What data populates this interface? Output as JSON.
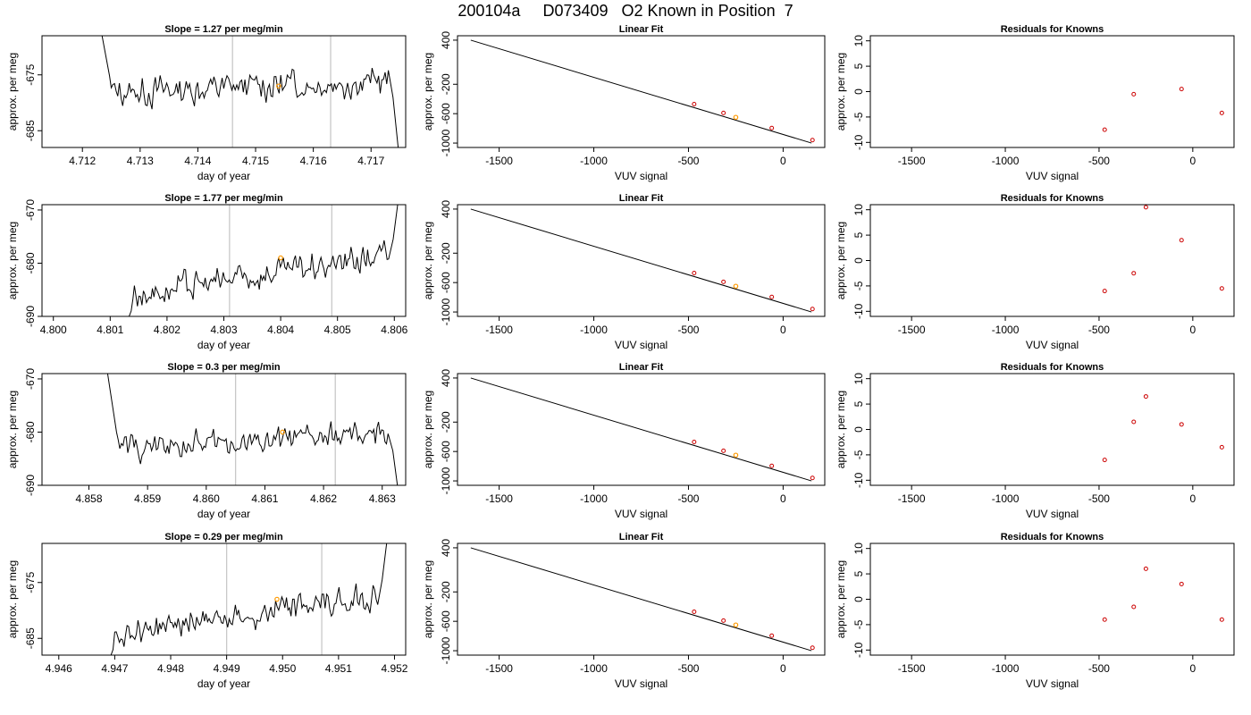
{
  "page_title": "200104a     D073409   O2 Known in Position  7",
  "chart_data": [
    {
      "type": "line",
      "title": "Slope =  1.27  per meg/min",
      "xlabel": "day of year",
      "ylabel": "approx. per meg",
      "xlim": [
        4.7113,
        4.7176
      ],
      "ylim": [
        -688,
        -668
      ],
      "xticks": [
        4.712,
        4.713,
        4.714,
        4.715,
        4.716,
        4.717
      ],
      "xtick_labels": [
        "4.712",
        "4.713",
        "4.714",
        "4.715",
        "4.716",
        "4.717"
      ],
      "yticks": [
        -685,
        -675
      ],
      "ytick_labels": [
        "-685",
        "-675"
      ],
      "vlines": [
        4.7146,
        4.7163
      ],
      "highlight": {
        "x": 4.7154,
        "y": -677
      },
      "trace": {
        "x_start": 4.7125,
        "x_end": 4.7173,
        "base_start": -678.2,
        "base_end": -676.0,
        "amp": 2.2,
        "head_above": true,
        "tail": "down"
      }
    },
    {
      "type": "scatter",
      "title": "Linear Fit",
      "xlabel": "VUV signal",
      "ylabel": "approx. per meg",
      "xlim": [
        -1720,
        220
      ],
      "ylim": [
        -1060,
        460
      ],
      "xticks": [
        -1500,
        -1000,
        -500,
        0
      ],
      "xtick_labels": [
        "-1500",
        "-1000",
        "-500",
        "0"
      ],
      "yticks": [
        -1000,
        -600,
        -200,
        400
      ],
      "ytick_labels": [
        "-1000",
        "-600",
        "-200",
        "400"
      ],
      "line": {
        "x": [
          -1650,
          150
        ],
        "y": [
          400,
          -1000
        ]
      },
      "points": {
        "x": [
          -470,
          -315,
          -60,
          155
        ],
        "y": [
          -470,
          -590,
          -795,
          -960
        ]
      },
      "highlight": {
        "x": -250,
        "y": -650
      }
    },
    {
      "type": "scatter",
      "title": "Residuals for Knowns",
      "xlabel": "VUV signal",
      "ylabel": "approx. per meg",
      "xlim": [
        -1720,
        220
      ],
      "ylim": [
        -11,
        11
      ],
      "xticks": [
        -1500,
        -1000,
        -500,
        0
      ],
      "xtick_labels": [
        "-1500",
        "-1000",
        "-500",
        "0"
      ],
      "yticks": [
        -10,
        -5,
        0,
        5,
        10
      ],
      "ytick_labels": [
        "-10",
        "-5",
        "0",
        "5",
        "10"
      ],
      "points": {
        "x": [
          -470,
          -315,
          -60,
          155
        ],
        "y": [
          -7.5,
          -0.5,
          0.5,
          -4.2
        ]
      }
    },
    {
      "type": "line",
      "title": "Slope =  1.77  per meg/min",
      "xlabel": "day of year",
      "ylabel": "approx. per meg",
      "xlim": [
        4.7998,
        4.8062
      ],
      "ylim": [
        -690,
        -669
      ],
      "xticks": [
        4.8,
        4.801,
        4.802,
        4.803,
        4.804,
        4.805,
        4.806
      ],
      "xtick_labels": [
        "4.800",
        "4.801",
        "4.802",
        "4.803",
        "4.804",
        "4.805",
        "4.806"
      ],
      "yticks": [
        -690,
        -680,
        -670
      ],
      "ytick_labels": [
        "-690",
        "-680",
        "-670"
      ],
      "vlines": [
        4.8031,
        4.8049
      ],
      "highlight": {
        "x": 4.804,
        "y": -679
      },
      "trace": {
        "x_start": 4.8014,
        "x_end": 4.8059,
        "base_start": -686.0,
        "base_end": -678.5,
        "amp": 2.2,
        "head_above": false,
        "tail": "up"
      }
    },
    {
      "type": "scatter",
      "title": "Linear Fit",
      "xlabel": "VUV signal",
      "ylabel": "approx. per meg",
      "xlim": [
        -1720,
        220
      ],
      "ylim": [
        -1060,
        460
      ],
      "xticks": [
        -1500,
        -1000,
        -500,
        0
      ],
      "xtick_labels": [
        "-1500",
        "-1000",
        "-500",
        "0"
      ],
      "yticks": [
        -1000,
        -600,
        -200,
        400
      ],
      "ytick_labels": [
        "-1000",
        "-600",
        "-200",
        "400"
      ],
      "line": {
        "x": [
          -1650,
          150
        ],
        "y": [
          400,
          -1000
        ]
      },
      "points": {
        "x": [
          -470,
          -315,
          -60,
          155
        ],
        "y": [
          -470,
          -590,
          -795,
          -960
        ]
      },
      "highlight": {
        "x": -250,
        "y": -650
      }
    },
    {
      "type": "scatter",
      "title": "Residuals for Knowns",
      "xlabel": "VUV signal",
      "ylabel": "approx. per meg",
      "xlim": [
        -1720,
        220
      ],
      "ylim": [
        -11,
        11
      ],
      "xticks": [
        -1500,
        -1000,
        -500,
        0
      ],
      "xtick_labels": [
        "-1500",
        "-1000",
        "-500",
        "0"
      ],
      "yticks": [
        -10,
        -5,
        0,
        5,
        10
      ],
      "ytick_labels": [
        "-10",
        "-5",
        "0",
        "5",
        "10"
      ],
      "points": {
        "x": [
          -470,
          -315,
          -250,
          -60,
          155
        ],
        "y": [
          -6,
          -2.5,
          10.5,
          4,
          -5.5
        ]
      }
    },
    {
      "type": "line",
      "title": "Slope =  0.3  per meg/min",
      "xlabel": "day of year",
      "ylabel": "approx. per meg",
      "xlim": [
        4.8572,
        4.8634
      ],
      "ylim": [
        -690,
        -669
      ],
      "xticks": [
        4.858,
        4.859,
        4.86,
        4.861,
        4.862,
        4.863
      ],
      "xtick_labels": [
        "4.858",
        "4.859",
        "4.860",
        "4.861",
        "4.862",
        "4.863"
      ],
      "yticks": [
        -690,
        -680,
        -670
      ],
      "ytick_labels": [
        "-690",
        "-680",
        "-670"
      ],
      "vlines": [
        4.8605,
        4.8622
      ],
      "highlight": {
        "x": 4.8613,
        "y": -680
      },
      "trace": {
        "x_start": 4.8585,
        "x_end": 4.8631,
        "base_start": -683.0,
        "base_end": -680.5,
        "amp": 2.0,
        "head_above": true,
        "tail": "down"
      }
    },
    {
      "type": "scatter",
      "title": "Linear Fit",
      "xlabel": "VUV signal",
      "ylabel": "approx. per meg",
      "xlim": [
        -1720,
        220
      ],
      "ylim": [
        -1060,
        460
      ],
      "xticks": [
        -1500,
        -1000,
        -500,
        0
      ],
      "xtick_labels": [
        "-1500",
        "-1000",
        "-500",
        "0"
      ],
      "yticks": [
        -1000,
        -600,
        -200,
        400
      ],
      "ytick_labels": [
        "-1000",
        "-600",
        "-200",
        "400"
      ],
      "line": {
        "x": [
          -1650,
          150
        ],
        "y": [
          400,
          -1000
        ]
      },
      "points": {
        "x": [
          -470,
          -315,
          -60,
          155
        ],
        "y": [
          -470,
          -590,
          -795,
          -960
        ]
      },
      "highlight": {
        "x": -250,
        "y": -650
      }
    },
    {
      "type": "scatter",
      "title": "Residuals for Knowns",
      "xlabel": "VUV signal",
      "ylabel": "approx. per meg",
      "xlim": [
        -1720,
        220
      ],
      "ylim": [
        -11,
        11
      ],
      "xticks": [
        -1500,
        -1000,
        -500,
        0
      ],
      "xtick_labels": [
        "-1500",
        "-1000",
        "-500",
        "0"
      ],
      "yticks": [
        -10,
        -5,
        0,
        5,
        10
      ],
      "ytick_labels": [
        "-10",
        "-5",
        "0",
        "5",
        "10"
      ],
      "points": {
        "x": [
          -470,
          -315,
          -250,
          -60,
          155
        ],
        "y": [
          -6,
          1.5,
          6.5,
          1,
          -3.5
        ]
      }
    },
    {
      "type": "line",
      "title": "Slope =  0.29  per meg/min",
      "xlabel": "day of year",
      "ylabel": "approx. per meg",
      "xlim": [
        4.9457,
        4.9522
      ],
      "ylim": [
        -688,
        -668
      ],
      "xticks": [
        4.946,
        4.947,
        4.948,
        4.949,
        4.95,
        4.951,
        4.952
      ],
      "xtick_labels": [
        "4.946",
        "4.947",
        "4.948",
        "4.949",
        "4.950",
        "4.951",
        "4.952"
      ],
      "yticks": [
        -685,
        -675
      ],
      "ytick_labels": [
        "-685",
        "-675"
      ],
      "vlines": [
        4.949,
        4.9507
      ],
      "highlight": {
        "x": 4.9499,
        "y": -678
      },
      "trace": {
        "x_start": 4.947,
        "x_end": 4.9517,
        "base_start": -684.0,
        "base_end": -677.5,
        "amp": 2.0,
        "head_above": false,
        "tail": "up"
      }
    },
    {
      "type": "scatter",
      "title": "Linear Fit",
      "xlabel": "VUV signal",
      "ylabel": "approx. per meg",
      "xlim": [
        -1720,
        220
      ],
      "ylim": [
        -1060,
        460
      ],
      "xticks": [
        -1500,
        -1000,
        -500,
        0
      ],
      "xtick_labels": [
        "-1500",
        "-1000",
        "-500",
        "0"
      ],
      "yticks": [
        -1000,
        -600,
        -200,
        400
      ],
      "ytick_labels": [
        "-1000",
        "-600",
        "-200",
        "400"
      ],
      "line": {
        "x": [
          -1650,
          150
        ],
        "y": [
          400,
          -1000
        ]
      },
      "points": {
        "x": [
          -470,
          -315,
          -60,
          155
        ],
        "y": [
          -470,
          -590,
          -795,
          -960
        ]
      },
      "highlight": {
        "x": -250,
        "y": -650
      }
    },
    {
      "type": "scatter",
      "title": "Residuals for Knowns",
      "xlabel": "VUV signal",
      "ylabel": "approx. per meg",
      "xlim": [
        -1720,
        220
      ],
      "ylim": [
        -11,
        11
      ],
      "xticks": [
        -1500,
        -1000,
        -500,
        0
      ],
      "xtick_labels": [
        "-1500",
        "-1000",
        "-500",
        "0"
      ],
      "yticks": [
        -10,
        -5,
        0,
        5,
        10
      ],
      "ytick_labels": [
        "-10",
        "-5",
        "0",
        "5",
        "10"
      ],
      "points": {
        "x": [
          -470,
          -315,
          -250,
          -60,
          155
        ],
        "y": [
          -4,
          -1.5,
          6,
          3,
          -4
        ]
      }
    }
  ],
  "colors": {
    "trace": "#000000",
    "vline": "#c8c8c8",
    "point": "#cc0000",
    "highlight": "#ff9900",
    "fit_line": "#000000"
  }
}
